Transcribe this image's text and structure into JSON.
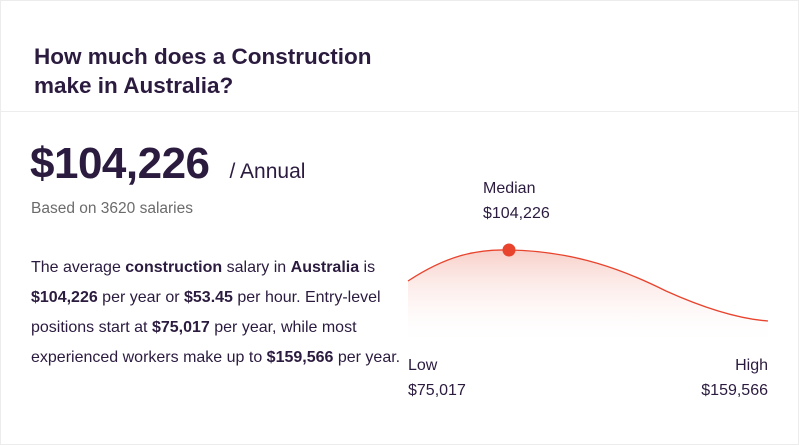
{
  "card": {
    "heading": "How much does a Construction make in Australia?",
    "salary": "$104,226",
    "period": "/ Annual",
    "based_on": "Based on 3620 salaries",
    "description": {
      "p1": "The average ",
      "job": "construction",
      "p2": " salary in ",
      "location": "Australia",
      "p3": " is ",
      "annual": "$104,226",
      "p4": " per year or ",
      "hourly": "$53.45",
      "p5": " per hour. Entry-level positions start at ",
      "entry": "$75,017",
      "p6": " per year, while most experienced workers make up to ",
      "top": "$159,566",
      "p7": " per year."
    }
  },
  "distribution": {
    "median_label": "Median",
    "median_value": "$104,226",
    "low_label": "Low",
    "low_value": "$75,017",
    "high_label": "High",
    "high_value": "$159,566"
  },
  "colors": {
    "accent": "#e8432d",
    "text": "#2b1b3f",
    "muted": "#6b6b6b"
  }
}
